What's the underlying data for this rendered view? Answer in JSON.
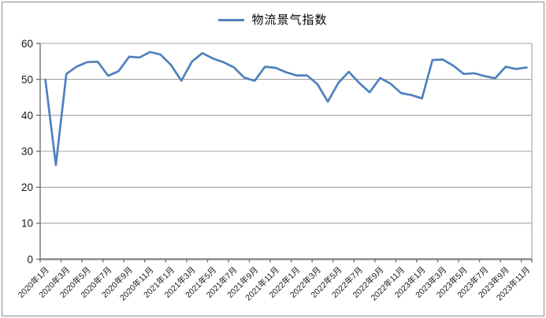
{
  "figure": {
    "legend_label": "物流景气指数"
  },
  "chart_data": {
    "type": "line",
    "title": "",
    "legend": "物流景气指数",
    "legend_position": "top-center",
    "grid": "horizontal",
    "ylim": [
      0,
      60
    ],
    "ytick_step": 10,
    "xtick_label_every": 2,
    "x": [
      "2020年1月",
      "2020年2月",
      "2020年3月",
      "2020年4月",
      "2020年5月",
      "2020年6月",
      "2020年7月",
      "2020年8月",
      "2020年9月",
      "2020年10月",
      "2020年11月",
      "2020年12月",
      "2021年1月",
      "2021年2月",
      "2021年3月",
      "2021年4月",
      "2021年5月",
      "2021年6月",
      "2021年7月",
      "2021年8月",
      "2021年9月",
      "2021年10月",
      "2021年11月",
      "2021年12月",
      "2022年1月",
      "2022年2月",
      "2022年3月",
      "2022年4月",
      "2022年5月",
      "2022年6月",
      "2022年7月",
      "2022年8月",
      "2022年9月",
      "2022年10月",
      "2022年11月",
      "2022年12月",
      "2023年1月",
      "2023年2月",
      "2023年3月",
      "2023年4月",
      "2023年5月",
      "2023年6月",
      "2023年7月",
      "2023年8月",
      "2023年9月",
      "2023年10月",
      "2023年11月"
    ],
    "series": [
      {
        "name": "物流景气指数",
        "values": [
          49.9,
          26.2,
          51.5,
          53.6,
          54.8,
          54.9,
          51.0,
          52.3,
          56.3,
          56.1,
          57.6,
          56.9,
          54.0,
          49.6,
          54.9,
          57.3,
          55.8,
          54.8,
          53.4,
          50.5,
          49.6,
          53.5,
          53.2,
          52.0,
          51.1,
          51.1,
          48.7,
          43.8,
          49.0,
          52.1,
          49.0,
          46.4,
          50.4,
          48.8,
          46.2,
          45.6,
          44.7,
          55.4,
          55.5,
          53.8,
          51.5,
          51.7,
          50.9,
          50.3,
          53.5,
          52.9,
          53.3
        ]
      }
    ],
    "line_color": "#4F81BD",
    "gridline_color": "#A3A3A3",
    "axis_color": "#737373",
    "text_color": "#1A1A1A"
  }
}
